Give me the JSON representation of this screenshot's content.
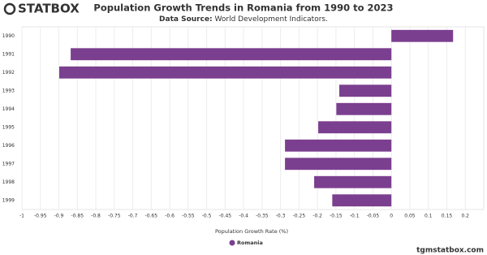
{
  "chart_data": {
    "type": "hbar",
    "logo": "STATBOX",
    "title": "Population Growth Trends in Romania from 1990 to 2023",
    "subtitle_label": "Data Source:",
    "subtitle_text": "World Development Indicators.",
    "x_label": "Population Growth Rate (%)",
    "footer": "tgmstatbox.com",
    "categories": [
      "1990",
      "1991",
      "1992",
      "1993",
      "1994",
      "1995",
      "1996",
      "1997",
      "1998",
      "1999"
    ],
    "series": [
      {
        "name": "Romania",
        "color": "#7b3f8f",
        "values": [
          0.167,
          -0.868,
          -0.899,
          -0.141,
          -0.149,
          -0.198,
          -0.288,
          -0.288,
          -0.209,
          -0.16
        ]
      }
    ],
    "xlim": [
      -1,
      0.25
    ],
    "xticks": [
      -1,
      -0.95,
      -0.9,
      -0.85,
      -0.8,
      -0.75,
      -0.7,
      -0.65,
      -0.6,
      -0.55,
      -0.5,
      -0.45,
      -0.4,
      -0.35,
      -0.3,
      -0.25,
      -0.2,
      -0.15,
      -0.1,
      -0.05,
      0,
      0.05,
      0.1,
      0.15,
      0.2
    ],
    "grid": true
  }
}
